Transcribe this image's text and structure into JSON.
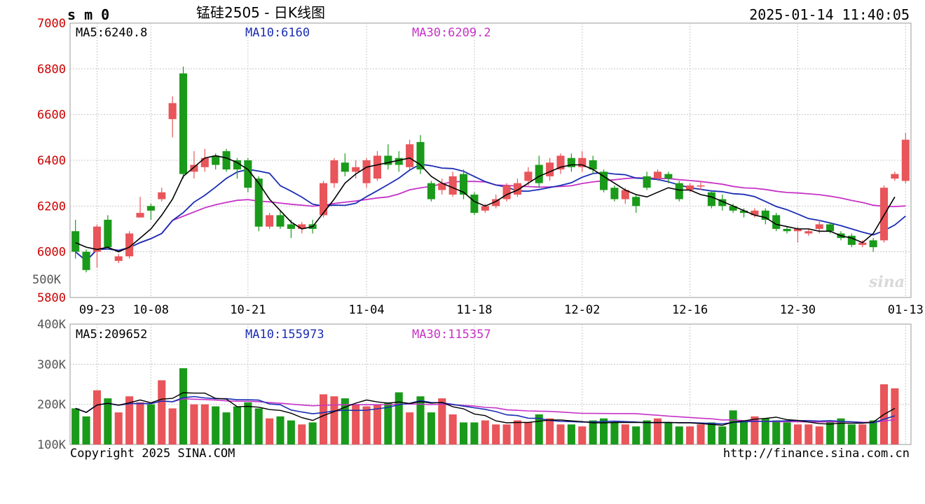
{
  "header": {
    "symbol": "s m 0",
    "title": "锰硅2505 - 日K线图",
    "datetime": "2025-01-14 11:40:05"
  },
  "footer": {
    "copyright": "Copyright 2025 SINA.COM",
    "url": "http://finance.sina.com.cn"
  },
  "logo_text": "sina",
  "colors": {
    "up": "#e8555a",
    "down": "#1a9a1a",
    "ma5": "#000000",
    "ma10": "#1b2eb3",
    "ma30": "#c733c7",
    "grid": "#c8c8c8",
    "price_label": "#cc0000",
    "vol_label": "#555555"
  },
  "chart_data": [
    {
      "type": "candlestick",
      "title": "锰硅2505 - 日K线图",
      "ylim": [
        5800,
        7000
      ],
      "y_ticks": [
        "7000",
        "6800",
        "6600",
        "6400",
        "6200",
        "6000",
        "5800"
      ],
      "x_ticks": [
        {
          "label": "09-23",
          "index": 2
        },
        {
          "label": "10-08",
          "index": 7
        },
        {
          "label": "10-21",
          "index": 16
        },
        {
          "label": "11-04",
          "index": 27
        },
        {
          "label": "11-18",
          "index": 37
        },
        {
          "label": "12-02",
          "index": 47
        },
        {
          "label": "12-16",
          "index": 57
        },
        {
          "label": "12-30",
          "index": 67
        },
        {
          "label": "01-13",
          "index": 77
        }
      ],
      "ma_labels": {
        "ma5": "MA5:6240.8",
        "ma10": "MA10:6160",
        "ma30": "MA30:6209.2"
      },
      "candles": [
        [
          6090,
          6000,
          6140,
          5970
        ],
        [
          6000,
          5920,
          6010,
          5910
        ],
        [
          6000,
          6110,
          6120,
          5930
        ],
        [
          6140,
          6020,
          6160,
          6010
        ],
        [
          5960,
          5980,
          5990,
          5950
        ],
        [
          5980,
          6080,
          6090,
          5970
        ],
        [
          6150,
          6170,
          6240,
          6150
        ],
        [
          6200,
          6180,
          6210,
          6140
        ],
        [
          6230,
          6260,
          6280,
          6220
        ],
        [
          6580,
          6650,
          6680,
          6500
        ],
        [
          6780,
          6340,
          6810,
          6320
        ],
        [
          6350,
          6380,
          6440,
          6320
        ],
        [
          6370,
          6410,
          6450,
          6350
        ],
        [
          6420,
          6380,
          6430,
          6360
        ],
        [
          6440,
          6360,
          6450,
          6350
        ],
        [
          6400,
          6360,
          6410,
          6320
        ],
        [
          6400,
          6280,
          6410,
          6260
        ],
        [
          6320,
          6110,
          6330,
          6090
        ],
        [
          6110,
          6160,
          6170,
          6100
        ],
        [
          6160,
          6110,
          6180,
          6100
        ],
        [
          6120,
          6100,
          6140,
          6060
        ],
        [
          6100,
          6120,
          6130,
          6080
        ],
        [
          6120,
          6100,
          6140,
          6080
        ],
        [
          6160,
          6300,
          6310,
          6150
        ],
        [
          6300,
          6400,
          6410,
          6280
        ],
        [
          6390,
          6350,
          6430,
          6330
        ],
        [
          6350,
          6370,
          6400,
          6320
        ],
        [
          6300,
          6400,
          6410,
          6280
        ],
        [
          6320,
          6420,
          6440,
          6310
        ],
        [
          6420,
          6380,
          6470,
          6360
        ],
        [
          6410,
          6380,
          6440,
          6350
        ],
        [
          6370,
          6470,
          6490,
          6360
        ],
        [
          6480,
          6360,
          6510,
          6340
        ],
        [
          6300,
          6230,
          6310,
          6220
        ],
        [
          6270,
          6300,
          6320,
          6250
        ],
        [
          6250,
          6330,
          6350,
          6240
        ],
        [
          6340,
          6250,
          6360,
          6230
        ],
        [
          6250,
          6170,
          6260,
          6160
        ],
        [
          6180,
          6200,
          6210,
          6170
        ],
        [
          6200,
          6230,
          6250,
          6190
        ],
        [
          6230,
          6290,
          6300,
          6220
        ],
        [
          6250,
          6300,
          6320,
          6240
        ],
        [
          6310,
          6350,
          6370,
          6290
        ],
        [
          6380,
          6300,
          6420,
          6280
        ],
        [
          6330,
          6390,
          6410,
          6310
        ],
        [
          6360,
          6420,
          6430,
          6340
        ],
        [
          6410,
          6370,
          6430,
          6350
        ],
        [
          6370,
          6410,
          6440,
          6350
        ],
        [
          6400,
          6360,
          6420,
          6340
        ],
        [
          6350,
          6270,
          6360,
          6260
        ],
        [
          6280,
          6230,
          6290,
          6220
        ],
        [
          6230,
          6270,
          6280,
          6210
        ],
        [
          6240,
          6200,
          6250,
          6170
        ],
        [
          6330,
          6280,
          6350,
          6270
        ],
        [
          6320,
          6350,
          6360,
          6310
        ],
        [
          6340,
          6320,
          6350,
          6300
        ],
        [
          6300,
          6230,
          6310,
          6220
        ],
        [
          6270,
          6290,
          6300,
          6260
        ],
        [
          6290,
          6290,
          6310,
          6270
        ],
        [
          6260,
          6200,
          6270,
          6190
        ],
        [
          6230,
          6200,
          6250,
          6180
        ],
        [
          6200,
          6180,
          6210,
          6170
        ],
        [
          6180,
          6170,
          6190,
          6150
        ],
        [
          6160,
          6180,
          6190,
          6150
        ],
        [
          6180,
          6140,
          6190,
          6120
        ],
        [
          6160,
          6100,
          6170,
          6090
        ],
        [
          6100,
          6090,
          6110,
          6080
        ],
        [
          6090,
          6100,
          6110,
          6040
        ],
        [
          6080,
          6090,
          6100,
          6070
        ],
        [
          6100,
          6120,
          6140,
          6080
        ],
        [
          6120,
          6090,
          6130,
          6080
        ],
        [
          6080,
          6060,
          6090,
          6050
        ],
        [
          6070,
          6030,
          6080,
          6020
        ],
        [
          6030,
          6040,
          6050,
          6020
        ],
        [
          6050,
          6020,
          6060,
          6000
        ],
        [
          6050,
          6280,
          6290,
          6040
        ],
        [
          6320,
          6340,
          6350,
          6310
        ],
        [
          6310,
          6490,
          6520,
          6300
        ]
      ],
      "ma5": [
        6040,
        6020,
        6010,
        6020,
        6000,
        6020,
        6060,
        6100,
        6160,
        6230,
        6330,
        6370,
        6410,
        6420,
        6410,
        6390,
        6360,
        6300,
        6230,
        6180,
        6130,
        6100,
        6110,
        6170,
        6230,
        6300,
        6340,
        6370,
        6380,
        6390,
        6400,
        6410,
        6380,
        6330,
        6300,
        6280,
        6260,
        6220,
        6200,
        6220,
        6250,
        6270,
        6300,
        6330,
        6350,
        6370,
        6380,
        6380,
        6360,
        6330,
        6300,
        6270,
        6250,
        6240,
        6260,
        6280,
        6270,
        6270,
        6250,
        6240,
        6220,
        6200,
        6180,
        6160,
        6150,
        6120,
        6110,
        6100,
        6100,
        6090,
        6090,
        6070,
        6060,
        6040,
        6080,
        6160,
        6240
      ]
    },
    {
      "type": "bar",
      "title": "",
      "ylim": [
        100000,
        400000
      ],
      "y_ticks": [
        "400K",
        "300K",
        "200K",
        "100K"
      ],
      "ma_labels": {
        "ma5": "MA5:209652",
        "ma10": "MA10:155973",
        "ma30": "MA30:115357"
      },
      "volume": [
        190000,
        170000,
        235000,
        215000,
        180000,
        220000,
        205000,
        200000,
        260000,
        190000,
        290000,
        200000,
        200000,
        195000,
        180000,
        195000,
        205000,
        190000,
        165000,
        170000,
        160000,
        150000,
        155000,
        225000,
        220000,
        215000,
        200000,
        195000,
        200000,
        205000,
        230000,
        180000,
        220000,
        180000,
        215000,
        175000,
        155000,
        155000,
        160000,
        150000,
        150000,
        160000,
        155000,
        175000,
        165000,
        150000,
        150000,
        145000,
        160000,
        165000,
        155000,
        150000,
        145000,
        160000,
        165000,
        155000,
        145000,
        145000,
        150000,
        155000,
        145000,
        185000,
        160000,
        170000,
        165000,
        160000,
        155000,
        150000,
        150000,
        145000,
        155000,
        165000,
        150000,
        150000,
        160000,
        250000,
        240000
      ]
    }
  ]
}
